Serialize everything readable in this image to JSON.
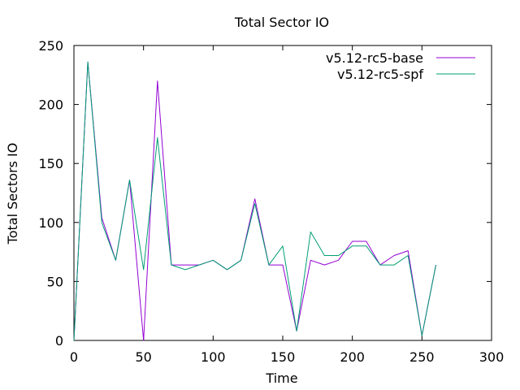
{
  "chart_data": {
    "type": "line",
    "title": "Total Sector IO",
    "xlabel": "Time",
    "ylabel": "Total Sectors IO",
    "xlim": [
      0,
      300
    ],
    "ylim": [
      0,
      250
    ],
    "xticks": [
      0,
      50,
      100,
      150,
      200,
      250,
      300
    ],
    "yticks": [
      0,
      50,
      100,
      150,
      200,
      250
    ],
    "grid": false,
    "legend_position": "top-right",
    "series": [
      {
        "name": "v5.12-rc5-base",
        "color": "#9400d3",
        "x": [
          0,
          10,
          20,
          30,
          40,
          50,
          60,
          70,
          80,
          90,
          100,
          110,
          120,
          130,
          140,
          150,
          160,
          170,
          180,
          190,
          200,
          210,
          220,
          230,
          240,
          250,
          260
        ],
        "y": [
          0,
          236,
          104,
          68,
          136,
          0,
          220,
          64,
          64,
          64,
          68,
          60,
          68,
          120,
          64,
          64,
          8,
          68,
          64,
          68,
          84,
          84,
          64,
          72,
          76,
          4,
          64
        ]
      },
      {
        "name": "v5.12-rc5-spf",
        "color": "#009e73",
        "x": [
          0,
          10,
          20,
          30,
          40,
          50,
          60,
          70,
          80,
          90,
          100,
          110,
          120,
          130,
          140,
          150,
          160,
          170,
          180,
          190,
          200,
          210,
          220,
          230,
          240,
          250,
          260
        ],
        "y": [
          0,
          236,
          100,
          68,
          136,
          60,
          172,
          64,
          60,
          64,
          68,
          60,
          68,
          116,
          64,
          80,
          8,
          92,
          72,
          72,
          80,
          80,
          64,
          64,
          72,
          4,
          64
        ]
      }
    ]
  }
}
